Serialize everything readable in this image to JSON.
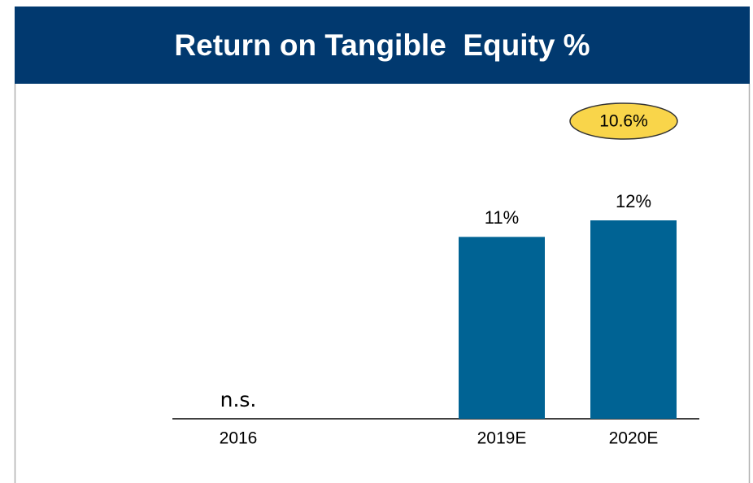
{
  "chart_data": {
    "type": "bar",
    "title": "Return on Tangible  Equity %",
    "categories": [
      "2016",
      null,
      "2019E",
      "2020E"
    ],
    "values": [
      null,
      null,
      11,
      12
    ],
    "value_labels": [
      "n.s.",
      null,
      "11%",
      "12%"
    ],
    "color": "#006394",
    "annotation": "10.6%"
  }
}
